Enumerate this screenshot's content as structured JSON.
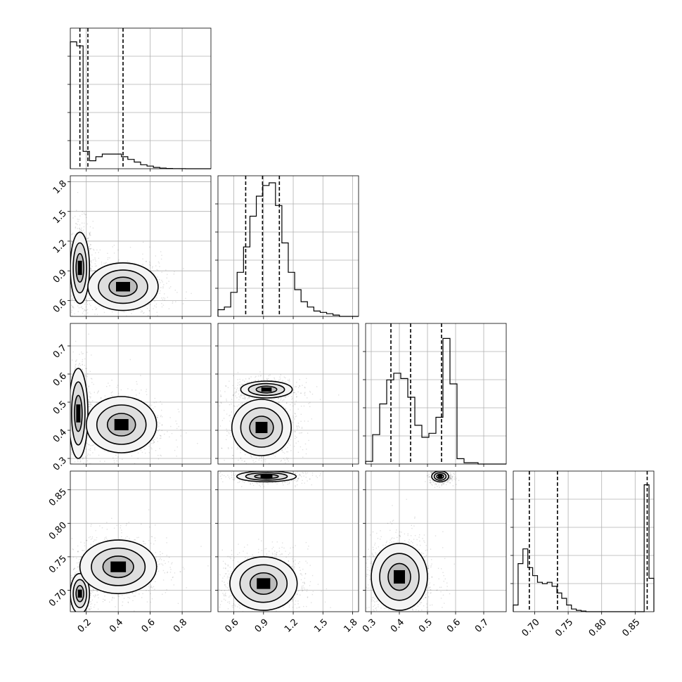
{
  "chart_data": {
    "type": "corner",
    "title": "",
    "variables": [
      {
        "range": [
          0.1,
          0.98
        ],
        "ticks": [
          0.2,
          0.4,
          0.6,
          0.8
        ],
        "tick_labels": [
          "0.2",
          "0.4",
          "0.6",
          "0.8"
        ],
        "quantiles": [
          0.16,
          0.21,
          0.43
        ]
      },
      {
        "range": [
          0.44,
          1.86
        ],
        "ticks": [
          0.6,
          0.9,
          1.2,
          1.5,
          1.8
        ],
        "tick_labels": [
          "0.6",
          "0.9",
          "1.2",
          "1.5",
          "1.8"
        ],
        "quantiles": [
          0.72,
          0.89,
          1.06
        ]
      },
      {
        "range": [
          0.28,
          0.78
        ],
        "ticks": [
          0.3,
          0.4,
          0.5,
          0.6,
          0.7
        ],
        "tick_labels": [
          "0.3",
          "0.4",
          "0.5",
          "0.6",
          "0.7"
        ],
        "quantiles": [
          0.37,
          0.44,
          0.55
        ]
      },
      {
        "range": [
          0.668,
          0.878
        ],
        "ticks": [
          0.7,
          0.75,
          0.8,
          0.85
        ],
        "tick_labels": [
          "0.70",
          "0.75",
          "0.80",
          "0.85"
        ],
        "quantiles": [
          0.692,
          0.734,
          0.868
        ]
      }
    ],
    "histograms": [
      {
        "var": 0,
        "edges": [
          0.1,
          0.98
        ],
        "counts": [
          0.95,
          0.92,
          0.13,
          0.06,
          0.09,
          0.11,
          0.11,
          0.11,
          0.09,
          0.07,
          0.05,
          0.03,
          0.02,
          0.01,
          0.005,
          0.002,
          0.001,
          0.0005,
          0.0,
          0.0,
          0.0,
          0.0
        ]
      },
      {
        "var": 1,
        "edges": [
          0.44,
          1.86
        ],
        "counts": [
          0.05,
          0.07,
          0.18,
          0.33,
          0.52,
          0.75,
          0.9,
          0.98,
          1.0,
          0.83,
          0.55,
          0.33,
          0.2,
          0.11,
          0.07,
          0.04,
          0.03,
          0.02,
          0.01,
          0.0,
          0.0,
          0.0
        ]
      },
      {
        "var": 2,
        "edges": [
          0.28,
          0.78
        ],
        "counts": [
          0.02,
          0.22,
          0.45,
          0.63,
          0.68,
          0.64,
          0.5,
          0.29,
          0.2,
          0.23,
          0.35,
          0.94,
          0.6,
          0.04,
          0.01,
          0.01,
          0.0,
          0.0,
          0.0,
          0.0
        ]
      },
      {
        "var": 3,
        "edges": [
          0.668,
          0.878
        ],
        "counts": [
          0.05,
          0.36,
          0.47,
          0.33,
          0.27,
          0.22,
          0.21,
          0.22,
          0.19,
          0.14,
          0.1,
          0.05,
          0.02,
          0.01,
          0.005,
          0.0,
          0.0,
          0.0,
          0.0,
          0.0,
          0.0,
          0.0,
          0.0,
          0.0,
          0.0,
          0.0,
          0.0,
          0.95,
          0.25
        ]
      }
    ],
    "pairs": [
      {
        "x": 0,
        "y": 1,
        "modes": [
          {
            "cx": 0.16,
            "cy": 0.93,
            "sx": 0.03,
            "sy": 0.18,
            "w": 0.55
          },
          {
            "cx": 0.43,
            "cy": 0.74,
            "sx": 0.11,
            "sy": 0.12,
            "w": 0.45
          }
        ]
      },
      {
        "x": 0,
        "y": 2,
        "modes": [
          {
            "cx": 0.15,
            "cy": 0.46,
            "sx": 0.03,
            "sy": 0.08,
            "w": 0.5
          },
          {
            "cx": 0.42,
            "cy": 0.42,
            "sx": 0.11,
            "sy": 0.05,
            "w": 0.5
          }
        ]
      },
      {
        "x": 1,
        "y": 2,
        "modes": [
          {
            "cx": 0.93,
            "cy": 0.545,
            "sx": 0.13,
            "sy": 0.015,
            "w": 0.45
          },
          {
            "cx": 0.88,
            "cy": 0.41,
            "sx": 0.15,
            "sy": 0.05,
            "w": 0.55
          }
        ]
      },
      {
        "x": 0,
        "y": 3,
        "modes": [
          {
            "cx": 0.16,
            "cy": 0.695,
            "sx": 0.03,
            "sy": 0.015,
            "w": 0.4
          },
          {
            "cx": 0.4,
            "cy": 0.735,
            "sx": 0.12,
            "sy": 0.02,
            "w": 0.6
          }
        ]
      },
      {
        "x": 1,
        "y": 3,
        "modes": [
          {
            "cx": 0.93,
            "cy": 0.87,
            "sx": 0.15,
            "sy": 0.004,
            "w": 0.35
          },
          {
            "cx": 0.9,
            "cy": 0.71,
            "sx": 0.17,
            "sy": 0.02,
            "w": 0.65
          }
        ]
      },
      {
        "x": 2,
        "y": 3,
        "modes": [
          {
            "cx": 0.545,
            "cy": 0.87,
            "sx": 0.015,
            "sy": 0.004,
            "w": 0.35
          },
          {
            "cx": 0.4,
            "cy": 0.72,
            "sx": 0.05,
            "sy": 0.025,
            "w": 0.65
          }
        ]
      }
    ],
    "grid": true
  }
}
